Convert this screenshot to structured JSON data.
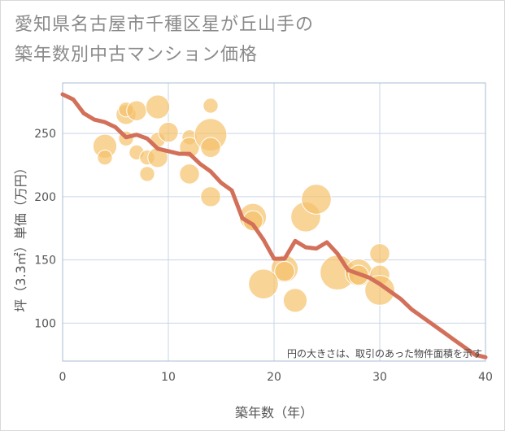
{
  "title": {
    "line1": "愛知県名古屋市千種区星が丘山手の",
    "line2": "築年数別中古マンション価格"
  },
  "colors": {
    "bubble": "#f5c26b",
    "line": "#d2705a",
    "grid": "#c9d6e6",
    "plot_border": "#aabcd4"
  },
  "chart_data": {
    "type": "scatter",
    "title": "愛知県名古屋市千種区星が丘山手の築年数別中古マンション価格",
    "xlabel": "築年数（年）",
    "ylabel": "坪（3.3㎡）単価（万円）",
    "xlim": [
      0,
      40
    ],
    "ylim": [
      70,
      290
    ],
    "xticks": [
      0,
      10,
      20,
      30,
      40
    ],
    "yticks": [
      100,
      150,
      200,
      250
    ],
    "grid": true,
    "note": "円の大きさは、取引のあった物件面積を示す",
    "bubbles": [
      {
        "x": 4,
        "y": 240,
        "size": 3
      },
      {
        "x": 4,
        "y": 231,
        "size": 1
      },
      {
        "x": 6,
        "y": 265,
        "size": 2
      },
      {
        "x": 6,
        "y": 269,
        "size": 1
      },
      {
        "x": 6,
        "y": 246,
        "size": 1
      },
      {
        "x": 7,
        "y": 268,
        "size": 2
      },
      {
        "x": 7,
        "y": 235,
        "size": 1
      },
      {
        "x": 8,
        "y": 218,
        "size": 1
      },
      {
        "x": 8,
        "y": 231,
        "size": 1
      },
      {
        "x": 9,
        "y": 271,
        "size": 3
      },
      {
        "x": 9,
        "y": 245,
        "size": 1
      },
      {
        "x": 9,
        "y": 231,
        "size": 2
      },
      {
        "x": 10,
        "y": 251,
        "size": 2
      },
      {
        "x": 12,
        "y": 247,
        "size": 1
      },
      {
        "x": 12,
        "y": 239,
        "size": 2
      },
      {
        "x": 12,
        "y": 218,
        "size": 2
      },
      {
        "x": 14,
        "y": 272,
        "size": 1
      },
      {
        "x": 14,
        "y": 249,
        "size": 6
      },
      {
        "x": 14,
        "y": 239,
        "size": 2
      },
      {
        "x": 14,
        "y": 200,
        "size": 2
      },
      {
        "x": 18,
        "y": 184,
        "size": 4
      },
      {
        "x": 18,
        "y": 181,
        "size": 2
      },
      {
        "x": 21,
        "y": 143,
        "size": 4
      },
      {
        "x": 21,
        "y": 141,
        "size": 2
      },
      {
        "x": 19,
        "y": 131,
        "size": 5
      },
      {
        "x": 22,
        "y": 118,
        "size": 3
      },
      {
        "x": 23,
        "y": 184,
        "size": 5
      },
      {
        "x": 24,
        "y": 198,
        "size": 5
      },
      {
        "x": 26,
        "y": 140,
        "size": 7
      },
      {
        "x": 28,
        "y": 140,
        "size": 4
      },
      {
        "x": 28,
        "y": 138,
        "size": 2
      },
      {
        "x": 30,
        "y": 155,
        "size": 2
      },
      {
        "x": 30,
        "y": 138,
        "size": 2
      },
      {
        "x": 30,
        "y": 126,
        "size": 5
      }
    ],
    "trend": {
      "x": [
        0,
        1,
        2,
        3,
        4,
        5,
        6,
        7,
        8,
        9,
        10,
        11,
        12,
        13,
        14,
        15,
        16,
        17,
        18,
        19,
        20,
        21,
        22,
        23,
        24,
        25,
        26,
        27,
        28,
        29,
        30,
        31,
        32,
        33,
        34,
        35,
        36,
        37,
        38,
        39,
        40
      ],
      "y": [
        281,
        277,
        266,
        261,
        259,
        255,
        247,
        249,
        246,
        238,
        236,
        234,
        234,
        226,
        220,
        211,
        205,
        183,
        178,
        166,
        151,
        151,
        165,
        160,
        159,
        164,
        155,
        142,
        139,
        136,
        131,
        125,
        119,
        111,
        105,
        99,
        93,
        87,
        81,
        75,
        73
      ]
    }
  }
}
